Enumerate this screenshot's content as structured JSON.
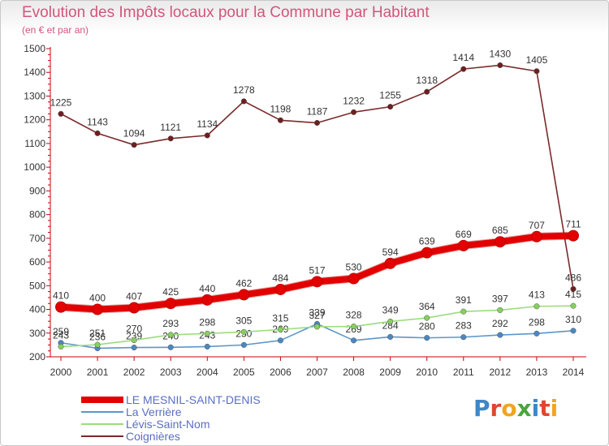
{
  "header": {
    "title": "Evolution des Impôts locaux pour la Commune par Habitant",
    "subtitle": "(en € et par an)"
  },
  "logo": {
    "letters": [
      "P",
      "r",
      "o",
      "x",
      "i",
      "t",
      "i"
    ],
    "colors": [
      "#3e87c7",
      "#e0462f",
      "#f2a421",
      "#4aa53c",
      "#3e87c7",
      "#e0462f",
      "#f2a421"
    ]
  },
  "chart_data": {
    "type": "line",
    "x": [
      "2000",
      "2001",
      "2002",
      "2003",
      "2004",
      "2005",
      "2006",
      "2007",
      "2008",
      "2009",
      "2010",
      "2011",
      "2012",
      "2013",
      "2014"
    ],
    "ylim": [
      200,
      1500
    ],
    "yticks": [
      200,
      300,
      400,
      500,
      600,
      700,
      800,
      900,
      1000,
      1100,
      1200,
      1300,
      1400,
      1500
    ],
    "grid": false,
    "legend": "bottom-left",
    "series": [
      {
        "name": "LE MESNIL-SAINT-DENIS",
        "color": "#e30000",
        "marker": "#e30000",
        "values": [
          410,
          400,
          407,
          425,
          440,
          462,
          484,
          517,
          530,
          594,
          639,
          669,
          685,
          707,
          711
        ]
      },
      {
        "name": "La Verrière",
        "color": "#5b97c9",
        "marker": "#4a88c2",
        "values": [
          259,
          236,
          239,
          240,
          243,
          250,
          269,
          339,
          269,
          284,
          280,
          283,
          292,
          298,
          310
        ]
      },
      {
        "name": "Lévis-Saint-Nom",
        "color": "#9ddc7c",
        "marker": "#86d05e",
        "values": [
          243,
          251,
          270,
          293,
          298,
          305,
          315,
          327,
          328,
          349,
          364,
          391,
          397,
          413,
          415
        ]
      },
      {
        "name": "Coignières",
        "color": "#7a2a2a",
        "marker": "#6e1f1f",
        "values": [
          1225,
          1143,
          1094,
          1121,
          1134,
          1278,
          1198,
          1187,
          1232,
          1255,
          1318,
          1414,
          1430,
          1405,
          486
        ]
      }
    ]
  }
}
